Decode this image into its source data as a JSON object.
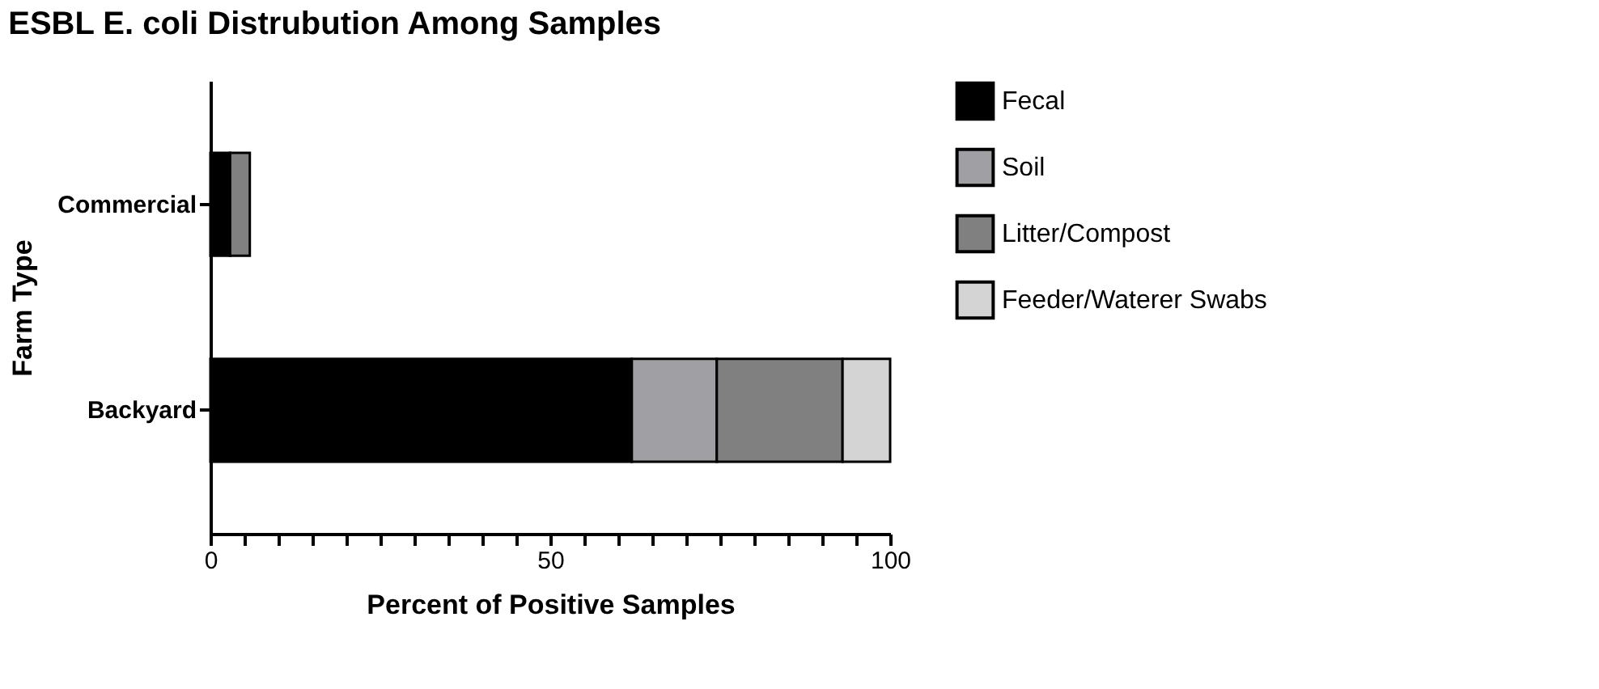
{
  "chart_data": {
    "type": "bar",
    "orientation": "horizontal",
    "stacked": true,
    "title": "ESBL E. coli Distrubution Among Samples",
    "xlabel": "Percent of Positive Samples",
    "ylabel": "Farm Type",
    "categories": [
      "Commercial",
      "Backyard"
    ],
    "series": [
      {
        "name": "Fecal",
        "color": "#000000",
        "values": [
          2.9,
          62
        ]
      },
      {
        "name": "Soil",
        "color": "#a0a0a4",
        "values": [
          null,
          12.5
        ]
      },
      {
        "name": "Litter/Compost",
        "color": "#808080",
        "values": [
          2.9,
          18.5
        ]
      },
      {
        "name": "Feeder/Waterer Swabs",
        "color": "#d4d4d4",
        "values": [
          null,
          7
        ]
      }
    ],
    "xlim": [
      0,
      100
    ],
    "xticks": [
      0,
      {
        "value": 5,
        "label": null
      },
      {
        "value": 10,
        "label": null
      },
      {
        "value": 15,
        "label": null
      },
      {
        "value": 20,
        "label": null
      },
      {
        "value": 25,
        "label": null
      },
      {
        "value": 30,
        "label": null
      },
      {
        "value": 35,
        "label": null
      },
      {
        "value": 40,
        "label": null
      },
      {
        "value": 45,
        "label": null
      },
      50,
      {
        "value": 55,
        "label": null
      },
      {
        "value": 60,
        "label": null
      },
      {
        "value": 65,
        "label": null
      },
      {
        "value": 70,
        "label": null
      },
      {
        "value": 75,
        "label": null
      },
      {
        "value": 80,
        "label": null
      },
      {
        "value": 85,
        "label": null
      },
      {
        "value": 90,
        "label": null
      },
      {
        "value": 95,
        "label": null
      },
      100
    ],
    "grid": false,
    "legend": "top right"
  }
}
